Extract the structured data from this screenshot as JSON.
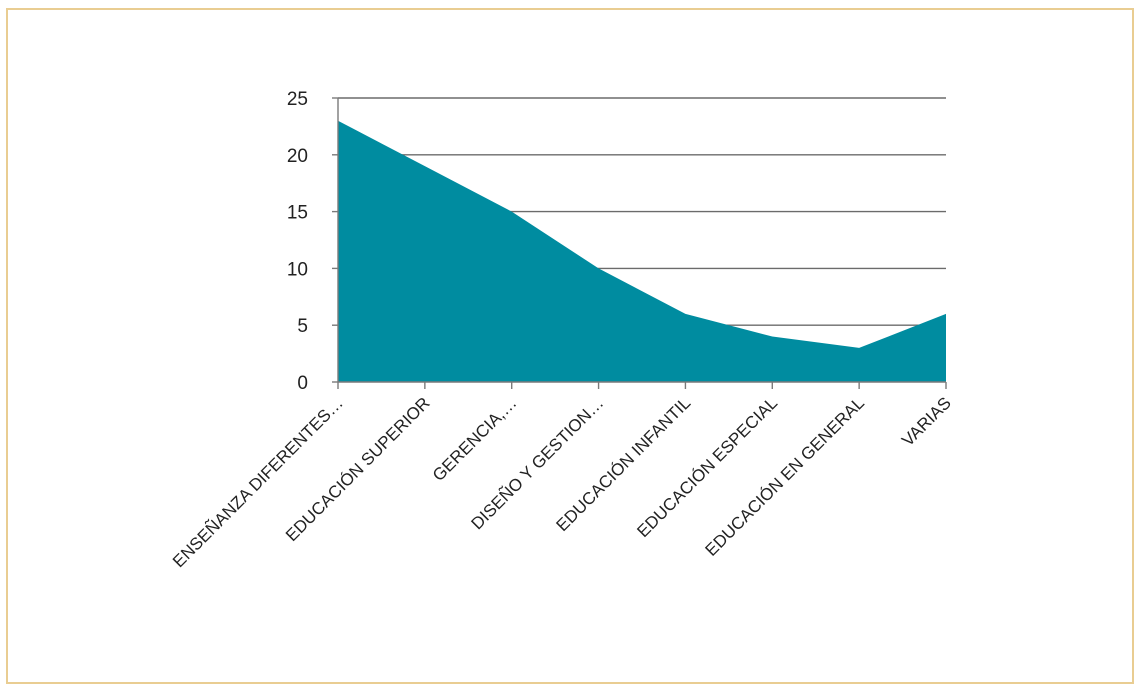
{
  "chart_data": {
    "type": "area",
    "categories": [
      "ENSEÑANZA DIFERENTES…",
      "EDUCACIÓN SUPERIOR",
      "GERENCIA,…",
      "DISEÑO Y GESTION…",
      "EDUCACIÓN INFANTIL",
      "EDUCACIÓN ESPECIAL",
      "EDUCACIÓN EN GENERAL",
      "VARIAS"
    ],
    "values": [
      23,
      19,
      15,
      10,
      6,
      4,
      3,
      6
    ],
    "ylim": [
      0,
      25
    ],
    "yticks": [
      "0",
      "5",
      "10",
      "15",
      "20",
      "25"
    ],
    "grid": true,
    "legend": "none",
    "colors": {
      "fill": "#008ca0",
      "grid": "#6b6b6b",
      "axis": "#7a7a7a",
      "frame": "#e9cd92"
    }
  }
}
